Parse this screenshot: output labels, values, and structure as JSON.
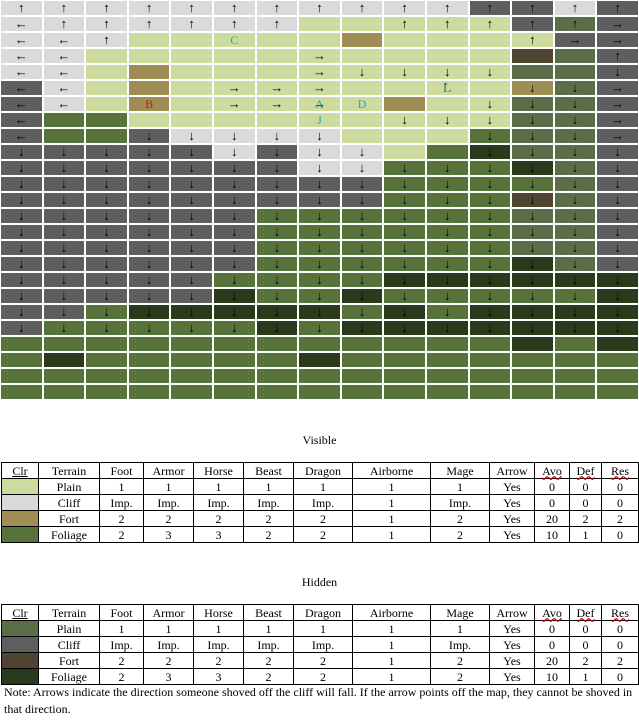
{
  "map": {
    "colors": {
      "P": "#cddc9e",
      "C": "#dadada",
      "F": "#9e8e54",
      "G": "#58723b",
      "p": "#5b6e49",
      "c": "#5e5e5e",
      "f": "#4f4331",
      "g": "#2a3a1d"
    },
    "markers_colors": {
      "cyan": "#19a6c8",
      "red": "#d01212"
    },
    "rows": [
      "CCCCCCCCCCCccCc",
      "CCCCCCCPPPPPcpc",
      "CCCPPPPPFPPPPcc",
      "CCPPPPPPPPPPfpc",
      "CCPFPPPPPPPPppc",
      "cCPFPPPPPPPPFpc",
      "cCPFPPPPPFPPppc",
      "cGGPPPPPPPPPppc",
      "cGGcCCCCPPPGppc",
      "cccccCcCCPGgppc",
      "cccccccCCGGGgpc",
      "cccccccccGGGGpc",
      "cccccccccGGGfpc",
      "ccccccGGGGGGppc",
      "ccccccGGGGGGppc",
      "ccccccGGGGGGppc",
      "ccccccGGGGGGgpc",
      "cccccGGGGgggggg",
      "cccccgGGgGGGGGg",
      "ccGgggggGgGgggg",
      "cGGGGGgGggggggg",
      "GGGGGGGGGGGGgGg",
      "GgGGGGGgGGGGGGG",
      "GGGGGGGGGGGGGGG",
      "GGGGGGGGGGGGGGG"
    ],
    "arrows": [
      "↑↑↑↑↑↑↑↑↑↑↑↑↑↑↑",
      "←↑↑↑↑↑↑  ↑↑↑↑↑→",
      "←←↑         ↑→→",
      "←←     →      ↑→",
      "←←     →↓↓↓↓  ↓→",
      "←←   →→→  L ↓↓→",
      "←←   →→→   ↓↓↓→",
      "←        ↓↓↓↓↓→",
      "←  ↓↓↓↓↓   ↓↓↓→",
      "↓↓↓↓↓↓↓↓↓  ↓↓↓↓",
      "↓↓↓↓↓↓↓↓↓↓↓↓↓↓↓",
      "↓↓↓↓↓↓↓↓↓↓↓↓↓↓↓",
      "↓↓↓↓↓↓↓↓↓↓↓↓↓↓↓",
      "↓↓↓↓↓↓↓↓↓↓↓↓↓↓↓",
      "↓↓↓↓↓↓↓↓↓↓↓↓↓↓↓",
      "↓↓↓↓↓↓↓↓↓↓↓↓↓↓↓",
      "↓↓↓↓↓↓↓↓↓↓↓↓↓↓↓",
      "↓↓↓↓↓↓↓↓↓↓↓↓↓↓↓",
      "↓↓↓↓↓↓↓↓↓↓↓↓↓↓↓",
      "↓↓↓↓↓↓↓↓↓↓↓↓↓↓↓",
      "↓↓↓↓↓↓↓↓↓↓↓↓↓↓↓",
      "               ",
      "               ",
      "               ",
      "               "
    ],
    "markers": [
      {
        "row": 2,
        "col": 5,
        "label": "C",
        "color": "cyan"
      },
      {
        "row": 5,
        "col": 10,
        "label": "L",
        "color": "cyan"
      },
      {
        "row": 6,
        "col": 3,
        "label": "B",
        "color": "red"
      },
      {
        "row": 6,
        "col": 7,
        "label": "A",
        "color": "cyan"
      },
      {
        "row": 6,
        "col": 8,
        "label": "D",
        "color": "cyan"
      },
      {
        "row": 7,
        "col": 7,
        "label": "J",
        "color": "cyan"
      }
    ]
  },
  "visible": {
    "title": "Visible",
    "headers": [
      "Clr",
      "Terrain",
      "Foot",
      "Armor",
      "Horse",
      "Beast",
      "Dragon",
      "Airborne",
      "Mage",
      "Arrow",
      "Avo",
      "Def",
      "Res"
    ],
    "rows": [
      {
        "color": "#cddc9e",
        "cells": [
          "Plain",
          "1",
          "1",
          "1",
          "1",
          "1",
          "1",
          "1",
          "Yes",
          "0",
          "0",
          "0"
        ]
      },
      {
        "color": "#dadada",
        "cells": [
          "Cliff",
          "Imp.",
          "Imp.",
          "Imp.",
          "Imp.",
          "Imp.",
          "1",
          "Imp.",
          "Yes",
          "0",
          "0",
          "0"
        ]
      },
      {
        "color": "#9e8e54",
        "cells": [
          "Fort",
          "2",
          "2",
          "2",
          "2",
          "2",
          "1",
          "2",
          "Yes",
          "20",
          "2",
          "2"
        ]
      },
      {
        "color": "#58723b",
        "cells": [
          "Foliage",
          "2",
          "3",
          "3",
          "2",
          "2",
          "1",
          "2",
          "Yes",
          "10",
          "1",
          "0"
        ]
      }
    ]
  },
  "hidden": {
    "title": "Hidden",
    "headers": [
      "Clr",
      "Terrain",
      "Foot",
      "Armor",
      "Horse",
      "Beast",
      "Dragon",
      "Airborne",
      "Mage",
      "Arrow",
      "Avo",
      "Def",
      "Res"
    ],
    "rows": [
      {
        "color": "#5b6e49",
        "cells": [
          "Plain",
          "1",
          "1",
          "1",
          "1",
          "1",
          "1",
          "1",
          "Yes",
          "0",
          "0",
          "0"
        ]
      },
      {
        "color": "#5e5e5e",
        "cells": [
          "Cliff",
          "Imp.",
          "Imp.",
          "Imp.",
          "Imp.",
          "Imp.",
          "1",
          "Imp.",
          "Yes",
          "0",
          "0",
          "0"
        ]
      },
      {
        "color": "#4f4331",
        "cells": [
          "Fort",
          "2",
          "2",
          "2",
          "2",
          "2",
          "1",
          "2",
          "Yes",
          "20",
          "2",
          "2"
        ]
      },
      {
        "color": "#2a3a1d",
        "cells": [
          "Foliage",
          "2",
          "3",
          "3",
          "2",
          "2",
          "1",
          "2",
          "Yes",
          "10",
          "1",
          "0"
        ]
      }
    ]
  },
  "note": "Note: Arrows indicate the direction someone shoved off the cliff will fall. If the arrow points off the map, they cannot be shoved in that direction."
}
